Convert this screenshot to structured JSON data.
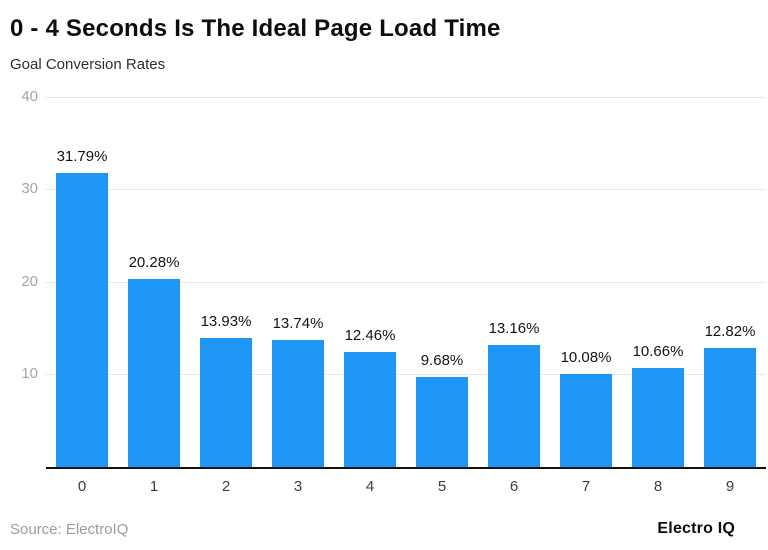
{
  "header": {
    "title": "0 - 4 Seconds Is The Ideal Page Load Time",
    "subtitle": "Goal Conversion Rates"
  },
  "footer": {
    "source": "Source: ElectroIQ",
    "brand": "Electro IQ"
  },
  "colors": {
    "bar": "#1e96f5",
    "gridline": "#e8e8e8",
    "axis": "#111111",
    "ytick": "#a5a5a5",
    "xtick": "#3d3d3d",
    "valuelabel": "#141414",
    "source": "#9c9c9c"
  },
  "chart_data": {
    "type": "bar",
    "title": "0 - 4 Seconds Is The Ideal Page Load Time",
    "subtitle": "Goal Conversion Rates",
    "categories": [
      "0",
      "1",
      "2",
      "3",
      "4",
      "5",
      "6",
      "7",
      "8",
      "9"
    ],
    "values": [
      31.79,
      20.28,
      13.93,
      13.74,
      12.46,
      9.68,
      13.16,
      10.08,
      10.66,
      12.82
    ],
    "value_labels": [
      "31.79%",
      "20.28%",
      "13.93%",
      "13.74%",
      "12.46%",
      "9.68%",
      "13.16%",
      "10.08%",
      "10.66%",
      "12.82%"
    ],
    "xlabel": "",
    "ylabel": "",
    "ylim": [
      0,
      40
    ],
    "yticks": [
      10,
      20,
      30,
      40
    ],
    "grid": true,
    "legend": false
  }
}
